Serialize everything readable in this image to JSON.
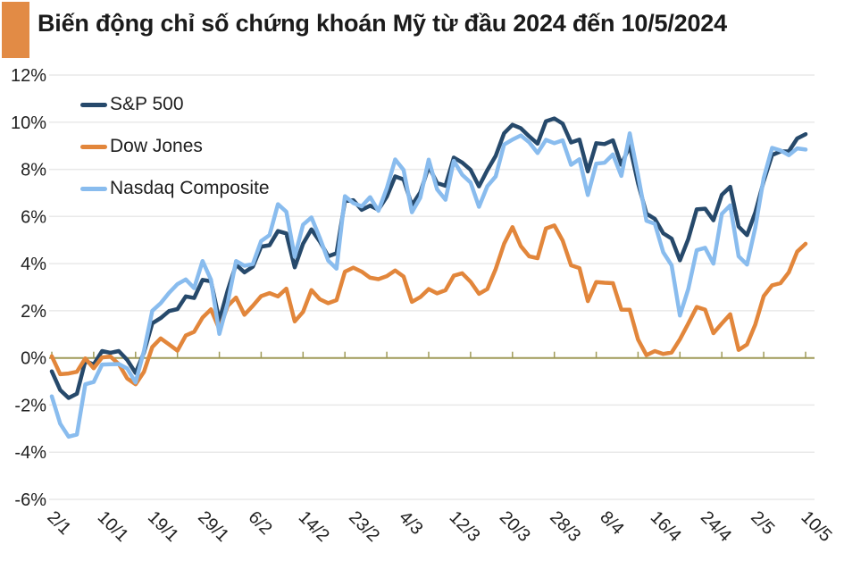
{
  "chart_data": {
    "type": "line",
    "title": "Biến động chỉ số chứng khoán Mỹ từ đầu 2024 đến 10/5/2024",
    "xlabel": "",
    "ylabel": "",
    "ylim": [
      -6,
      12
    ],
    "y_ticks": [
      12,
      10,
      8,
      6,
      4,
      2,
      0,
      -2,
      -4,
      -6
    ],
    "y_tick_suffix": "%",
    "x_tick_labels": [
      "2/1",
      "10/1",
      "19/1",
      "29/1",
      "6/2",
      "14/2",
      "23/2",
      "4/3",
      "12/3",
      "20/3",
      "28/3",
      "8/4",
      "16/4",
      "24/4",
      "2/5",
      "10/5"
    ],
    "label_every": 6,
    "tick_every": 5,
    "grid": "horizontal",
    "legend_position": "top-left",
    "colors": {
      "accent": "#E28B45",
      "gridline": "#E9E9E9",
      "zero_axis": "#9F9A58",
      "axis_text": "#202020"
    },
    "series": [
      {
        "name": "S&P 500",
        "color": "#26496B",
        "values": [
          -0.57,
          -1.36,
          -1.7,
          -1.52,
          -0.13,
          -0.28,
          0.29,
          0.22,
          0.29,
          -0.08,
          -0.64,
          0.23,
          1.47,
          1.69,
          1.99,
          2.07,
          2.61,
          2.54,
          3.31,
          3.25,
          1.59,
          2.86,
          3.96,
          3.63,
          3.87,
          4.72,
          4.78,
          5.38,
          5.28,
          3.84,
          4.84,
          5.45,
          4.94,
          4.31,
          4.44,
          6.65,
          6.69,
          6.28,
          6.46,
          6.29,
          6.84,
          7.7,
          7.57,
          6.47,
          7.02,
          8.12,
          7.42,
          7.3,
          8.5,
          8.29,
          7.98,
          7.28,
          7.96,
          8.57,
          9.53,
          9.89,
          9.74,
          9.4,
          9.09,
          10.04,
          10.16,
          9.94,
          9.14,
          9.26,
          7.91,
          9.11,
          9.07,
          9.23,
          8.19,
          9.0,
          7.41,
          6.12,
          5.9,
          5.29,
          5.06,
          4.14,
          5.05,
          6.3,
          6.33,
          5.84,
          6.92,
          7.26,
          5.57,
          5.21,
          6.17,
          7.5,
          8.61,
          8.76,
          8.76,
          9.31,
          9.49
        ]
      },
      {
        "name": "Dow Jones",
        "color": "#E2863B",
        "values": [
          0.07,
          -0.69,
          -0.66,
          -0.59,
          -0.02,
          -0.44,
          0.02,
          0.06,
          -0.26,
          -0.87,
          -1.12,
          -0.59,
          0.46,
          0.83,
          0.57,
          0.31,
          0.95,
          1.11,
          1.71,
          2.06,
          1.22,
          2.2,
          2.56,
          1.83,
          2.21,
          2.62,
          2.75,
          2.61,
          2.94,
          1.55,
          1.95,
          2.88,
          2.49,
          2.32,
          2.45,
          3.66,
          3.83,
          3.66,
          3.4,
          3.34,
          3.47,
          3.71,
          3.45,
          2.38,
          2.58,
          2.92,
          2.74,
          2.87,
          3.49,
          3.59,
          3.23,
          2.72,
          2.92,
          3.77,
          4.84,
          5.55,
          4.74,
          4.31,
          4.23,
          5.49,
          5.62,
          4.98,
          3.93,
          3.81,
          2.41,
          3.22,
          3.19,
          3.17,
          2.05,
          2.04,
          0.78,
          0.12,
          0.29,
          0.17,
          0.23,
          0.79,
          1.46,
          2.16,
          2.05,
          1.05,
          1.46,
          1.85,
          0.34,
          0.57,
          1.42,
          2.62,
          3.08,
          3.17,
          3.63,
          4.51,
          4.84
        ]
      },
      {
        "name": "Nasdaq Composite",
        "color": "#89BCEE",
        "values": [
          -1.63,
          -2.79,
          -3.34,
          -3.25,
          -1.12,
          -1.02,
          -0.28,
          -0.27,
          -0.26,
          -0.45,
          -1.04,
          0.3,
          2.0,
          2.32,
          2.76,
          3.13,
          3.33,
          2.96,
          4.11,
          3.32,
          1.02,
          2.33,
          4.11,
          3.91,
          3.98,
          4.96,
          5.21,
          6.52,
          6.2,
          4.29,
          5.65,
          5.96,
          5.09,
          4.13,
          3.79,
          6.86,
          6.57,
          6.43,
          6.82,
          6.24,
          7.2,
          8.42,
          7.97,
          6.18,
          6.8,
          8.41,
          7.15,
          6.71,
          8.36,
          7.77,
          7.44,
          6.41,
          7.28,
          7.7,
          9.05,
          9.26,
          9.44,
          9.15,
          8.69,
          9.25,
          9.11,
          9.23,
          8.19,
          8.43,
          6.91,
          8.24,
          8.28,
          8.63,
          7.72,
          9.53,
          7.75,
          5.82,
          5.69,
          4.48,
          3.93,
          1.8,
          2.93,
          4.57,
          4.67,
          4.0,
          6.11,
          6.47,
          4.31,
          3.96,
          5.53,
          7.63,
          8.91,
          8.8,
          8.6,
          8.89,
          8.84
        ]
      }
    ]
  }
}
